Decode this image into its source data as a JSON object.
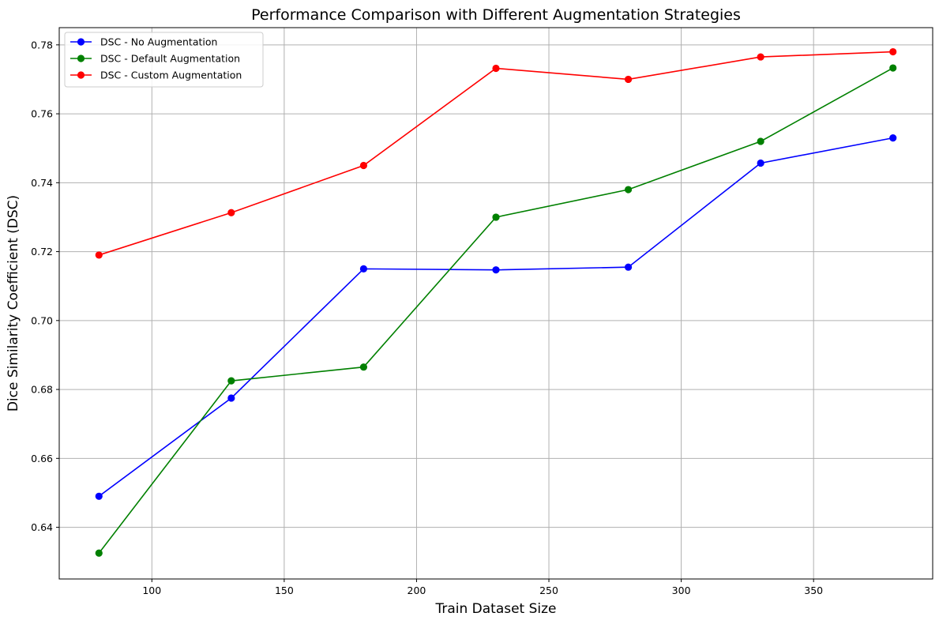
{
  "chart_data": {
    "type": "line",
    "title": "Performance Comparison with Different Augmentation Strategies",
    "xlabel": "Train Dataset Size",
    "ylabel": "Dice Similarity Coefficient (DSC)",
    "xlim": [
      65,
      395
    ],
    "ylim": [
      0.625,
      0.785
    ],
    "xticks": [
      100,
      150,
      200,
      250,
      300,
      350
    ],
    "xtick_labels": [
      "100",
      "150",
      "200",
      "250",
      "300",
      "350"
    ],
    "yticks": [
      0.64,
      0.66,
      0.68,
      0.7,
      0.72,
      0.74,
      0.76,
      0.78
    ],
    "ytick_labels": [
      "0.64",
      "0.66",
      "0.68",
      "0.70",
      "0.72",
      "0.74",
      "0.76",
      "0.78"
    ],
    "grid": true,
    "legend_position": "top-left",
    "x": [
      80,
      130,
      180,
      230,
      280,
      330,
      380
    ],
    "series": [
      {
        "name": "DSC - No Augmentation",
        "color": "#0000ff",
        "values": [
          0.649,
          0.6775,
          0.715,
          0.7147,
          0.7155,
          0.7457,
          0.753
        ]
      },
      {
        "name": "DSC - Default Augmentation",
        "color": "#008000",
        "values": [
          0.6325,
          0.6825,
          0.6865,
          0.73,
          0.738,
          0.752,
          0.7733
        ]
      },
      {
        "name": "DSC - Custom Augmentation",
        "color": "#ff0000",
        "values": [
          0.719,
          0.7313,
          0.745,
          0.7732,
          0.77,
          0.7765,
          0.778
        ]
      }
    ]
  }
}
